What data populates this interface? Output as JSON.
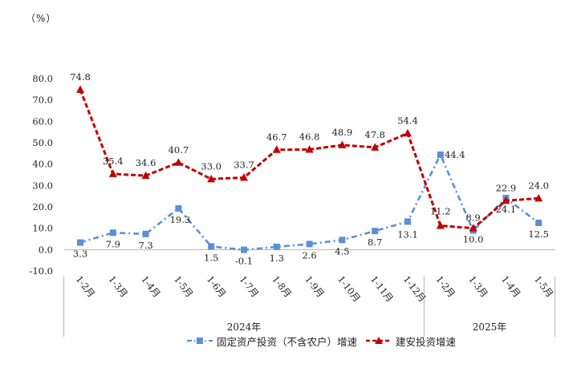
{
  "chart_data": {
    "type": "line",
    "unit_label": "（%）",
    "categories": [
      "1-2月",
      "1-3月",
      "1-4月",
      "1-5月",
      "1-6月",
      "1-7月",
      "1-8月",
      "1-9月",
      "1-10月",
      "1-11月",
      "1-12月",
      "1-2月",
      "1-3月",
      "1-4月",
      "1-5月"
    ],
    "groups": [
      {
        "label": "2024年",
        "start": 0,
        "end": 10
      },
      {
        "label": "2025年",
        "start": 11,
        "end": 14
      }
    ],
    "ylim": [
      -10,
      80
    ],
    "yticks": [
      "80.0",
      "70.0",
      "60.0",
      "50.0",
      "40.0",
      "30.0",
      "20.0",
      "10.0",
      "0.0",
      "-10.0"
    ],
    "grid": false,
    "legend_position": "bottom",
    "series": [
      {
        "name": "固定资产投资（不含农户）增速",
        "color": "#5b8fd6",
        "style": "dash-dot",
        "marker": "square",
        "values": [
          3.3,
          7.9,
          7.3,
          19.3,
          1.5,
          -0.1,
          1.3,
          2.6,
          4.5,
          8.7,
          13.1,
          44.4,
          8.9,
          24.1,
          12.5
        ],
        "labels": [
          "3.3",
          "7.9",
          "7.3",
          "19.3",
          "1.5",
          "-0.1",
          "1.3",
          "2.6",
          "4.5",
          "8.7",
          "13.1",
          "44.4",
          "8.9",
          "24.1",
          "12.5"
        ]
      },
      {
        "name": "建安投资增速",
        "color": "#c00000",
        "style": "dash",
        "marker": "triangle",
        "values": [
          74.8,
          35.4,
          34.6,
          40.7,
          33.0,
          33.7,
          46.7,
          46.8,
          48.9,
          47.8,
          54.4,
          11.2,
          10.0,
          22.9,
          24.0
        ],
        "labels": [
          "74.8",
          "35.4",
          "34.6",
          "40.7",
          "33.0",
          "33.7",
          "46.7",
          "46.8",
          "48.9",
          "47.8",
          "54.4",
          "11.2",
          "10.0",
          "22.9",
          "24.0"
        ]
      }
    ]
  }
}
